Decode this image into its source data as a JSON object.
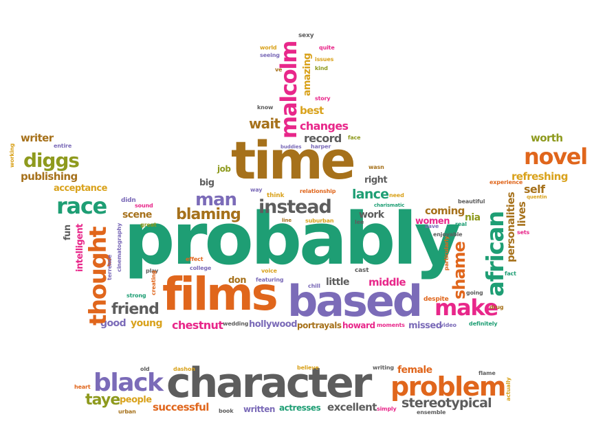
{
  "colors": {
    "green": "#1e9e74",
    "brown": "#a6711b",
    "purple": "#7b6bb8",
    "orange": "#e0661c",
    "pink": "#e8278a",
    "gray": "#5d5d5d",
    "olive": "#8e9a1e",
    "gold": "#d9a21c"
  },
  "words": [
    "probably",
    "films",
    "based",
    "time",
    "character",
    "problem",
    "black",
    "african",
    "thought",
    "make",
    "novel",
    "race",
    "diggs",
    "malcolm",
    "instead",
    "man",
    "blaming",
    "friend",
    "chestnut",
    "shame",
    "stereotypical",
    "taye",
    "successful",
    "excellent",
    "wait",
    "changes",
    "record",
    "best",
    "lance",
    "writer",
    "publishing",
    "acceptance",
    "refreshing",
    "worth",
    "self",
    "personalities",
    "lives",
    "hollywood",
    "portrayals",
    "howard",
    "middle",
    "missed",
    "good",
    "young",
    "people",
    "actresses",
    "written",
    "female",
    "little",
    "don",
    "scene",
    "coming",
    "nia",
    "women",
    "work",
    "right",
    "big",
    "job",
    "intelligent",
    "fun",
    "amazing",
    "sexy",
    "quite",
    "issues",
    "kind",
    "story",
    "world",
    "seeing",
    "ve",
    "know",
    "face",
    "buddies",
    "harper",
    "wasn",
    "need",
    "way",
    "relationship",
    "charismatic",
    "think",
    "line",
    "suburban",
    "lee",
    "cast",
    "chill",
    "voice",
    "featuring",
    "effect",
    "college",
    "strong",
    "creating",
    "play",
    "great",
    "sound",
    "didn",
    "terrence",
    "cinematography",
    "entire",
    "working",
    "experience",
    "quentin",
    "beautiful",
    "enjoyable",
    "save",
    "real",
    "particularly",
    "going",
    "despite",
    "fact",
    "drug",
    "sets",
    "definitely",
    "video",
    "moments",
    "wedding",
    "heart",
    "old",
    "dashon",
    "believe",
    "writing",
    "flame",
    "urban",
    "book",
    "simply",
    "ensemble",
    "actually"
  ]
}
